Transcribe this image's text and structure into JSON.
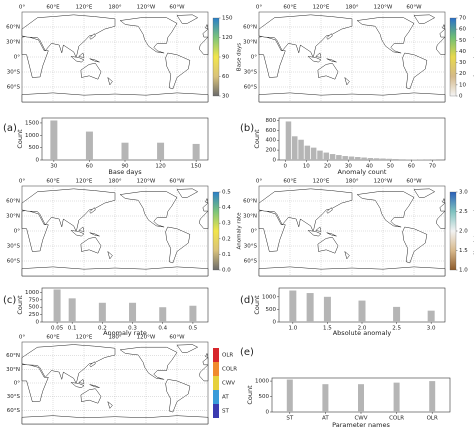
{
  "map_grid": {
    "lon_labels": [
      "0°",
      "60°E",
      "120°E",
      "180°",
      "120°W",
      "60°W"
    ],
    "lat_labels": [
      "60°N",
      "30°N",
      "0°",
      "30°S",
      "60°S"
    ]
  },
  "chart_data": [
    {
      "type": "map",
      "colorbar_label": "Base days",
      "clim": [
        30,
        150
      ],
      "colorbar_ticks": [
        30,
        60,
        90,
        120,
        150
      ],
      "cmap": [
        "#6b6b6b",
        "#d9c27a",
        "#f2e54b",
        "#7cc47a",
        "#2a7fc8"
      ]
    },
    {
      "type": "bar",
      "panel": "(a)",
      "x": [
        30,
        60,
        90,
        120,
        150
      ],
      "values": [
        1600,
        1150,
        700,
        700,
        650
      ],
      "xlim": [
        20,
        160
      ],
      "xticks": [
        30,
        60,
        90,
        120,
        150
      ],
      "ylim": [
        0,
        1700
      ],
      "yticks": [
        0,
        500,
        1000,
        1500
      ],
      "xlabel": "Base days",
      "ylabel": "Count",
      "color": "#b5b5b5"
    },
    {
      "type": "map",
      "colorbar_label": "Anomaly count",
      "clim": [
        0,
        70
      ],
      "colorbar_ticks": [
        0,
        10,
        20,
        30,
        40,
        50,
        60,
        70
      ],
      "cmap": [
        "#f5f5f5",
        "#d4b98a",
        "#e8d84c",
        "#6fbf73",
        "#2a6fc8"
      ]
    },
    {
      "type": "histogram",
      "panel": "(b)",
      "bins": [
        0,
        3,
        6,
        9,
        12,
        15,
        18,
        21,
        24,
        27,
        30,
        33,
        36,
        39,
        42,
        45,
        48,
        51,
        54,
        57,
        60,
        63,
        66,
        69,
        72
      ],
      "values": [
        780,
        480,
        410,
        290,
        250,
        190,
        150,
        120,
        100,
        80,
        70,
        60,
        50,
        40,
        35,
        30,
        25,
        20,
        15,
        12,
        10,
        8,
        5,
        5
      ],
      "xlim": [
        -3,
        76
      ],
      "xticks": [
        0,
        10,
        20,
        30,
        40,
        50,
        60,
        70
      ],
      "ylim": [
        0,
        850
      ],
      "yticks": [
        0,
        200,
        400,
        600,
        800
      ],
      "xlabel": "Anomaly count",
      "ylabel": "Count",
      "color": "#b5b5b5"
    },
    {
      "type": "map",
      "colorbar_label": "Anomaly rate",
      "clim": [
        0,
        0.5
      ],
      "colorbar_ticks": [
        {
          "value": 0,
          "label": "0.0"
        },
        0.1,
        0.2,
        0.3,
        0.4,
        0.5
      ],
      "cmap": [
        "#6b6b6b",
        "#d9c27a",
        "#f2e54b",
        "#7cc47a",
        "#2a7fc8"
      ]
    },
    {
      "type": "bar",
      "panel": "(c)",
      "x": [
        0.05,
        0.1,
        0.2,
        0.3,
        0.4,
        0.5
      ],
      "values": [
        1100,
        800,
        650,
        650,
        500,
        550
      ],
      "xlim": [
        0,
        0.55
      ],
      "xticks": [
        0.05,
        0.1,
        0.2,
        0.3,
        0.4,
        0.5
      ],
      "ylim": [
        0,
        1150
      ],
      "yticks": [
        0,
        250,
        500,
        750,
        1000
      ],
      "xlabel": "Anomaly rate",
      "ylabel": "Count",
      "color": "#b5b5b5"
    },
    {
      "type": "map",
      "colorbar_label": "Absolute anomaly",
      "clim": [
        1,
        3
      ],
      "colorbar_ticks": [
        {
          "value": 1,
          "label": "1.0"
        },
        1.5,
        {
          "value": 2,
          "label": "2.0"
        },
        2.5,
        {
          "value": 3,
          "label": "3.0"
        }
      ],
      "cmap": [
        "#8c5a2b",
        "#d8b98c",
        "#f2f2f2",
        "#7fc3c0",
        "#2a5fb8"
      ]
    },
    {
      "type": "bar",
      "panel": "(d)",
      "x": [
        1,
        1.25,
        1.5,
        2,
        2.5,
        3
      ],
      "values": [
        1250,
        1150,
        1000,
        850,
        600,
        450
      ],
      "xlim": [
        0.8,
        3.2
      ],
      "xticks": [
        {
          "value": 1,
          "label": "1.0"
        },
        1.5,
        {
          "value": 2,
          "label": "2.0"
        },
        2.5,
        {
          "value": 3,
          "label": "3.0"
        }
      ],
      "ylim": [
        0,
        1350
      ],
      "yticks": [
        0,
        500,
        1000
      ],
      "xlabel": "Absolute anomaly",
      "ylabel": "Count",
      "color": "#b5b5b5"
    },
    {
      "type": "map",
      "colorbar_categories": [
        "ST",
        "AT",
        "CWV",
        "COLR",
        "OLR"
      ],
      "colorbar_colors": [
        "#3b3bb0",
        "#3a9bd9",
        "#e6d13c",
        "#f08a2c",
        "#d7262b"
      ]
    },
    {
      "type": "bar",
      "panel": "(e)",
      "categories": [
        "ST",
        "AT",
        "CWV",
        "COLR",
        "OLR"
      ],
      "values": [
        1050,
        900,
        900,
        950,
        1000
      ],
      "ylim": [
        0,
        1100
      ],
      "yticks": [
        0,
        500,
        1000
      ],
      "xlabel": "Parameter names",
      "ylabel": "Count",
      "color": "#b5b5b5"
    }
  ]
}
